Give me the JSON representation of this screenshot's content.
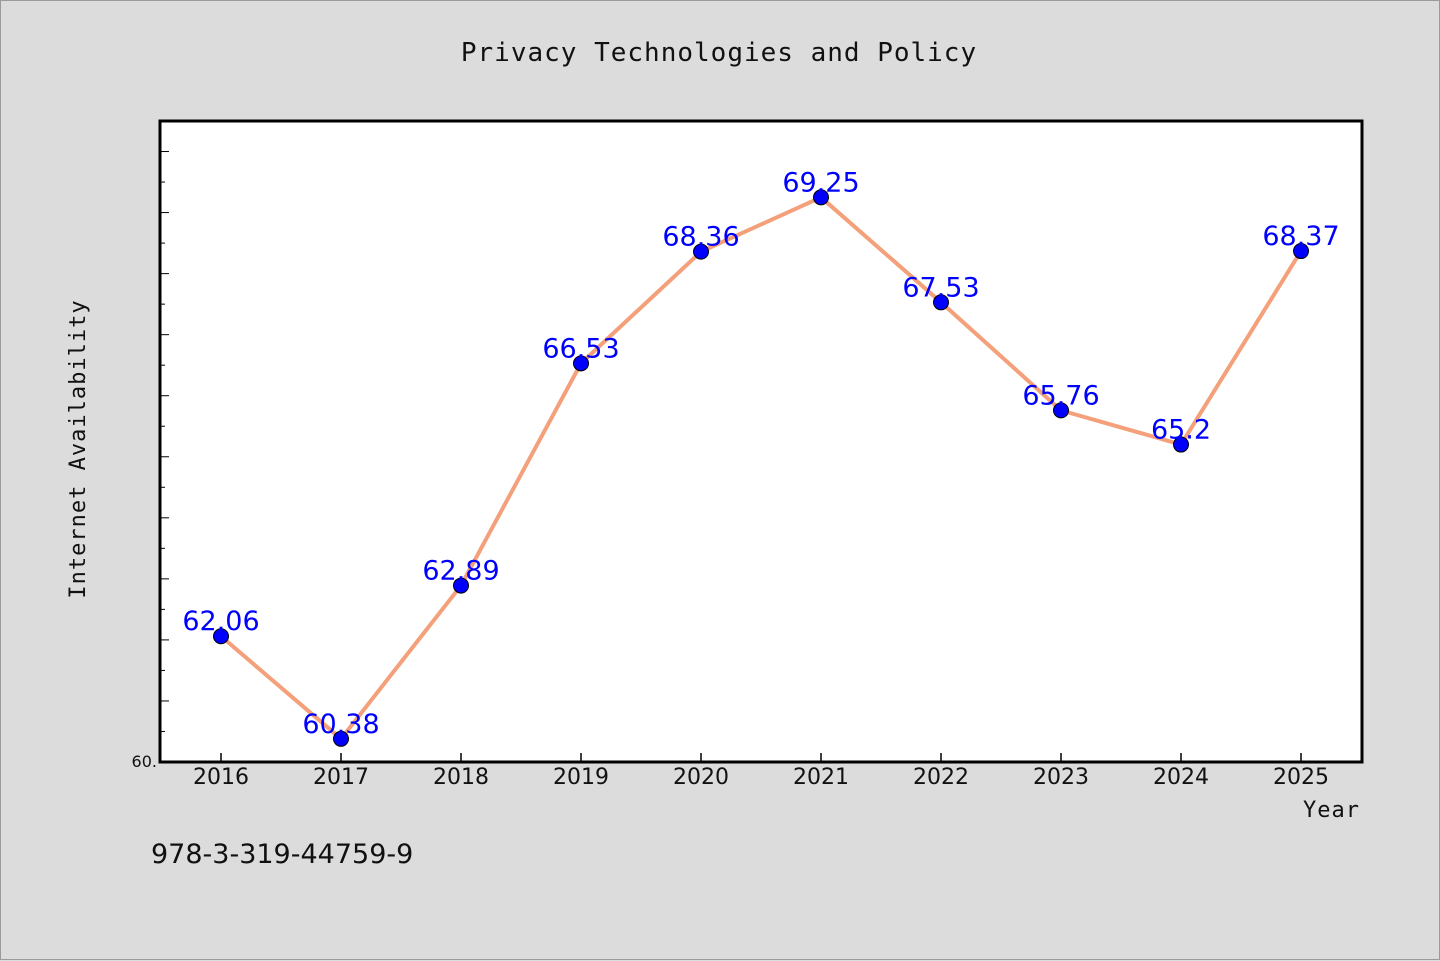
{
  "chart_data": {
    "type": "line",
    "title": "Privacy Technologies and Policy",
    "xlabel": "Year",
    "ylabel": "Internet Availability",
    "categories": [
      "2016",
      "2017",
      "2018",
      "2019",
      "2020",
      "2021",
      "2022",
      "2023",
      "2024",
      "2025"
    ],
    "series": [
      {
        "values": [
          62.06,
          60.38,
          62.89,
          66.53,
          68.36,
          69.25,
          67.53,
          65.76,
          65.2,
          68.37
        ],
        "data_labels": [
          "62.06",
          "60.38",
          "62.89",
          "66.53",
          "68.36",
          "69.25",
          "67.53",
          "65.76",
          "65.2",
          "68.37"
        ],
        "line_color": "#f4a07a",
        "marker_color": "#0000ff"
      }
    ],
    "ylim": [
      60.0,
      70.5
    ],
    "y_min_label": "60.",
    "grid": false,
    "legend": "none"
  },
  "footer_text": "978-3-319-44759-9"
}
